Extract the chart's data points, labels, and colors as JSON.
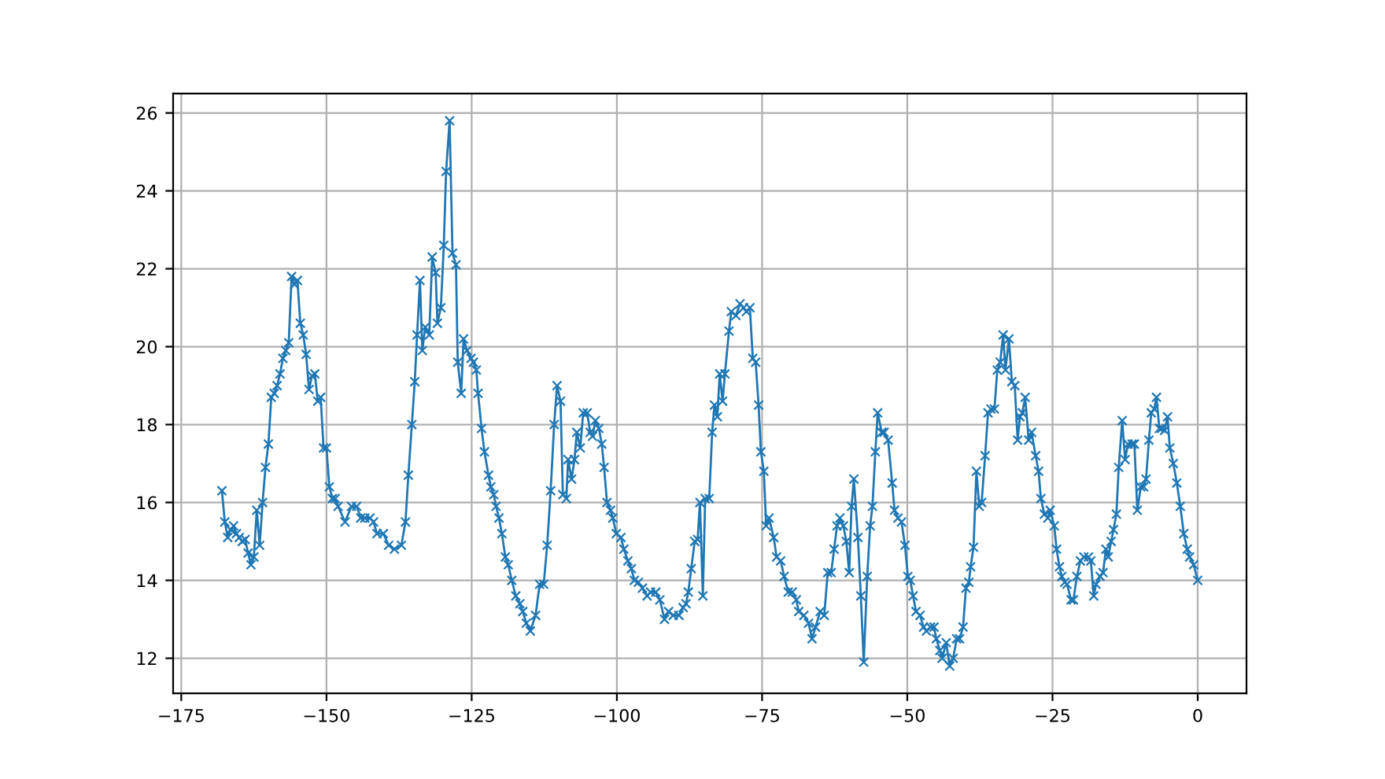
{
  "chart_data": {
    "type": "line",
    "color": "#1f77b4",
    "marker": "cross",
    "line_style": "solid",
    "grid": true,
    "xlim": [
      -176.4,
      8.4
    ],
    "ylim": [
      11.1,
      26.5
    ],
    "xticks": [
      -175,
      -150,
      -125,
      -100,
      -75,
      -50,
      -25,
      0
    ],
    "yticks": [
      12,
      14,
      16,
      18,
      20,
      22,
      24,
      26
    ],
    "x": [
      -168,
      -167.5,
      -167,
      -166.5,
      -166,
      -165.5,
      -165,
      -164.5,
      -164,
      -163.5,
      -163,
      -162.5,
      -162,
      -161.5,
      -161,
      -160.5,
      -160,
      -159.5,
      -159,
      -158.5,
      -158,
      -157.5,
      -157,
      -156.5,
      -156,
      -155.5,
      -155,
      -154.5,
      -154,
      -153.5,
      -153,
      -152.5,
      -152,
      -151.5,
      -151,
      -150.5,
      -150,
      -149.5,
      -149,
      -148.5,
      -148,
      -146.8,
      -145.7,
      -144.8,
      -144.1,
      -143.4,
      -142.5,
      -141.9,
      -141.3,
      -140.2,
      -139.3,
      -138.3,
      -137.1,
      -136.4,
      -135.9,
      -135.3,
      -134.8,
      -134.4,
      -133.9,
      -133.5,
      -133,
      -132.3,
      -131.8,
      -131.2,
      -130.9,
      -130.3,
      -129.8,
      -129.4,
      -128.8,
      -128.3,
      -127.7,
      -127.4,
      -126.8,
      -126.4,
      -125.8,
      -125.1,
      -124.7,
      -124.2,
      -123.9,
      -123.3,
      -122.8,
      -122.1,
      -121.7,
      -121.2,
      -120.8,
      -120.3,
      -119.8,
      -119.2,
      -118.7,
      -118.1,
      -117.4,
      -116.7,
      -116.2,
      -115.6,
      -114.9,
      -114,
      -113.3,
      -112.6,
      -112,
      -111.4,
      -110.8,
      -110.3,
      -109.7,
      -109.3,
      -108.7,
      -108.4,
      -107.8,
      -107.3,
      -106.9,
      -106.3,
      -105.8,
      -105.1,
      -104.6,
      -104.2,
      -103.7,
      -103.1,
      -102.6,
      -102.2,
      -101.7,
      -101.1,
      -100.7,
      -100.1,
      -99.3,
      -98.8,
      -98.1,
      -97.5,
      -97,
      -96.3,
      -95.6,
      -94.8,
      -94.2,
      -93.3,
      -92.6,
      -91.8,
      -91.1,
      -90.3,
      -89.3,
      -88.6,
      -88.1,
      -87.7,
      -87.2,
      -86.6,
      -86.1,
      -85.7,
      -85.2,
      -84.8,
      -84.1,
      -83.6,
      -83.2,
      -82.7,
      -82.3,
      -81.8,
      -81.4,
      -80.7,
      -80.3,
      -79.5,
      -78.8,
      -78.2,
      -77.7,
      -77.1,
      -76.6,
      -76.1,
      -75.6,
      -75.2,
      -74.7,
      -74.3,
      -73.8,
      -73,
      -72.5,
      -71.8,
      -71.2,
      -70.5,
      -69.8,
      -69.1,
      -68.7,
      -67.8,
      -67,
      -66.4,
      -65.8,
      -65,
      -64.3,
      -63.7,
      -63.1,
      -62.6,
      -62.1,
      -61.6,
      -61,
      -60.5,
      -60,
      -59.6,
      -59.2,
      -58.5,
      -58,
      -57.5,
      -56.9,
      -56.4,
      -56,
      -55.5,
      -55.1,
      -54.4,
      -54,
      -53.3,
      -52.6,
      -52.2,
      -51.6,
      -51,
      -50.4,
      -49.9,
      -49.5,
      -49,
      -48.5,
      -47.8,
      -47.2,
      -46.7,
      -46,
      -45.4,
      -45,
      -44.4,
      -44,
      -43.3,
      -42.7,
      -42.1,
      -41.5,
      -41,
      -40.4,
      -39.9,
      -39.4,
      -39.1,
      -38.6,
      -38.1,
      -37.6,
      -37.2,
      -36.6,
      -36.1,
      -35.6,
      -35,
      -34.5,
      -34,
      -33.5,
      -33.1,
      -32.5,
      -32,
      -31.5,
      -31,
      -30.6,
      -30.2,
      -29.7,
      -29.1,
      -28.6,
      -27.9,
      -27.4,
      -27,
      -26.4,
      -25.8,
      -25.4,
      -24.7,
      -24.3,
      -23.8,
      -23.4,
      -22.9,
      -22.5,
      -21.8,
      -21.4,
      -20.8,
      -20.2,
      -19.6,
      -18.8,
      -18.4,
      -17.9,
      -17.5,
      -16.8,
      -16.3,
      -15.8,
      -15.4,
      -14.9,
      -14.5,
      -14,
      -13.6,
      -13,
      -12.5,
      -12,
      -11.3,
      -10.9,
      -10.4,
      -9.8,
      -9.3,
      -8.9,
      -8.4,
      -8,
      -7.5,
      -7.1,
      -6.6,
      -6.2,
      -5.7,
      -5.2,
      -4.8,
      -4.2,
      -3.6,
      -3,
      -2.4,
      -1.8,
      -1.4,
      -0.7,
      0
    ],
    "values": [
      16.3,
      15.5,
      15.1,
      15.3,
      15.4,
      15.2,
      15.1,
      15.0,
      15.05,
      14.7,
      14.4,
      14.6,
      15.8,
      14.9,
      16.0,
      16.9,
      17.5,
      18.7,
      18.8,
      19.0,
      19.3,
      19.7,
      19.9,
      20.1,
      21.8,
      21.6,
      21.7,
      20.6,
      20.3,
      19.8,
      18.9,
      19.25,
      19.3,
      18.6,
      18.7,
      17.4,
      17.4,
      16.4,
      16.1,
      16.1,
      15.9,
      15.5,
      15.9,
      15.9,
      15.6,
      15.6,
      15.6,
      15.5,
      15.2,
      15.2,
      14.9,
      14.8,
      14.9,
      15.5,
      16.7,
      18.0,
      19.1,
      20.3,
      21.7,
      19.9,
      20.5,
      20.3,
      22.3,
      21.9,
      20.6,
      21.0,
      22.6,
      24.5,
      25.8,
      22.4,
      22.1,
      19.6,
      18.8,
      20.2,
      19.9,
      19.7,
      19.6,
      19.4,
      18.8,
      17.9,
      17.3,
      16.7,
      16.4,
      16.2,
      15.9,
      15.6,
      15.2,
      14.6,
      14.4,
      14.0,
      13.6,
      13.4,
      13.2,
      12.9,
      12.7,
      13.1,
      13.9,
      13.9,
      14.9,
      16.3,
      18.0,
      19.0,
      18.6,
      16.2,
      16.1,
      17.1,
      16.6,
      17.1,
      17.8,
      17.4,
      18.3,
      18.3,
      17.8,
      17.7,
      18.1,
      17.9,
      17.5,
      16.9,
      16.0,
      15.8,
      15.6,
      15.2,
      15.1,
      14.8,
      14.5,
      14.3,
      14.0,
      13.95,
      13.8,
      13.6,
      13.7,
      13.7,
      13.5,
      13.0,
      13.2,
      13.1,
      13.1,
      13.3,
      13.4,
      13.7,
      14.3,
      15.0,
      15.05,
      16.0,
      13.6,
      16.1,
      16.1,
      17.8,
      18.5,
      18.2,
      19.3,
      18.6,
      19.3,
      20.4,
      20.9,
      20.8,
      21.1,
      21.0,
      20.9,
      21.0,
      19.7,
      19.6,
      18.5,
      17.3,
      16.8,
      15.4,
      15.6,
      15.1,
      14.6,
      14.5,
      14.1,
      13.7,
      13.7,
      13.5,
      13.2,
      13.1,
      12.9,
      12.5,
      12.8,
      13.2,
      13.1,
      14.2,
      14.2,
      14.8,
      15.4,
      15.6,
      15.4,
      15.0,
      14.2,
      15.9,
      16.6,
      15.1,
      13.6,
      11.9,
      14.1,
      15.4,
      15.9,
      17.3,
      18.3,
      17.8,
      17.8,
      17.6,
      16.5,
      15.8,
      15.6,
      15.5,
      14.9,
      14.1,
      14.0,
      13.6,
      13.2,
      13.1,
      12.8,
      12.7,
      12.8,
      12.8,
      12.5,
      12.2,
      12.0,
      12.4,
      11.8,
      12.0,
      12.5,
      12.5,
      12.8,
      13.8,
      13.95,
      14.35,
      14.85,
      16.8,
      15.9,
      16.0,
      17.2,
      18.3,
      18.4,
      18.4,
      19.4,
      19.6,
      20.3,
      19.4,
      20.2,
      19.1,
      19.0,
      17.6,
      18.2,
      18.3,
      18.7,
      17.6,
      17.8,
      17.2,
      16.8,
      16.1,
      15.7,
      15.6,
      15.8,
      15.4,
      14.8,
      14.35,
      14.1,
      13.95,
      13.9,
      13.5,
      13.5,
      14.1,
      14.5,
      14.6,
      14.6,
      14.5,
      13.6,
      13.9,
      14.1,
      14.2,
      14.8,
      14.6,
      15.0,
      15.3,
      15.7,
      16.9,
      18.1,
      17.1,
      17.5,
      17.5,
      17.5,
      15.8,
      16.4,
      16.4,
      16.6,
      17.6,
      18.3,
      18.4,
      18.7,
      17.9,
      17.9,
      17.85,
      18.2,
      17.4,
      17.0,
      16.5,
      15.9,
      15.2,
      14.8,
      14.6,
      14.4,
      14.0
    ]
  }
}
